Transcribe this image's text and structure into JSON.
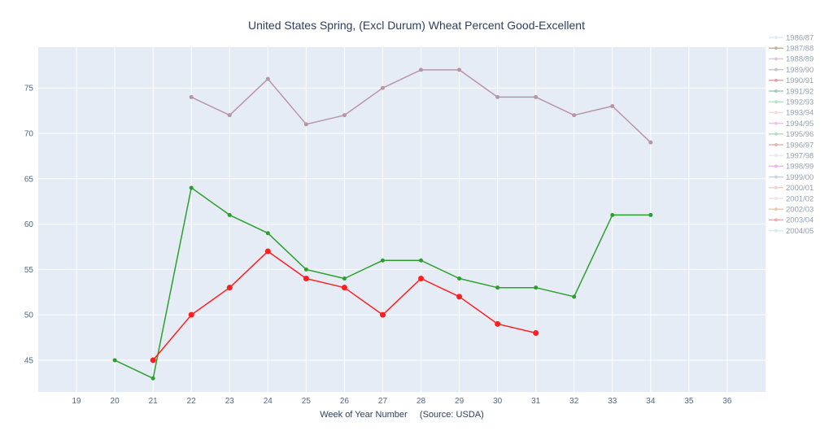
{
  "chart_data": {
    "type": "line",
    "title": "United States Spring, (Excl Durum) Wheat Percent Good-Excellent",
    "xlabel": "Week of Year Number     (Source: USDA)",
    "ylabel": "",
    "xlim": [
      18,
      37
    ],
    "ylim": [
      41.5,
      79.5
    ],
    "x_ticks": [
      19,
      20,
      21,
      22,
      23,
      24,
      25,
      26,
      27,
      28,
      29,
      30,
      31,
      32,
      33,
      34,
      35,
      36
    ],
    "y_ticks": [
      45,
      50,
      55,
      60,
      65,
      70,
      75
    ],
    "grid": true,
    "legend_position": "right",
    "legend": [
      {
        "name": "1986/87",
        "color": "#b6dfe8",
        "faded": true
      },
      {
        "name": "1987/88",
        "color": "#8b6b3e",
        "faded": true
      },
      {
        "name": "1988/89",
        "color": "#b895b6",
        "faded": true
      },
      {
        "name": "1989/90",
        "color": "#8f8f9f",
        "faded": true
      },
      {
        "name": "1990/91",
        "color": "#c74d4d",
        "faded": true
      },
      {
        "name": "1991/92",
        "color": "#4f9a6f",
        "faded": true
      },
      {
        "name": "1992/93",
        "color": "#77cc88",
        "faded": true
      },
      {
        "name": "1993/94",
        "color": "#f0b7b7",
        "faded": true
      },
      {
        "name": "1994/95",
        "color": "#d68de0",
        "faded": true
      },
      {
        "name": "1995/96",
        "color": "#6fbf8f",
        "faded": true
      },
      {
        "name": "1996/97",
        "color": "#d07070",
        "faded": true
      },
      {
        "name": "1997/98",
        "color": "#d8d8e0",
        "faded": true
      },
      {
        "name": "1998/99",
        "color": "#d670d6",
        "faded": true
      },
      {
        "name": "1999/00",
        "color": "#8fa8c8",
        "faded": true
      },
      {
        "name": "2000/01",
        "color": "#f4a09c",
        "faded": true
      },
      {
        "name": "2001/02",
        "color": "#f0c8c8",
        "faded": true
      },
      {
        "name": "2002/03",
        "color": "#c8a070",
        "faded": true
      },
      {
        "name": "2003/04",
        "color": "#e06060",
        "faded": true
      },
      {
        "name": "2004/05",
        "color": "#a6e0d6",
        "faded": true
      }
    ],
    "series": [
      {
        "color": "#b895a6",
        "marker": 2.5,
        "x": [
          22,
          23,
          24,
          25,
          26,
          27,
          28,
          29,
          30,
          31,
          32,
          33,
          34
        ],
        "y": [
          74,
          72,
          76,
          71,
          72,
          75,
          77,
          77,
          74,
          74,
          72,
          73,
          69
        ]
      },
      {
        "color": "#2ca02c",
        "marker": 2.5,
        "x": [
          20,
          21,
          22,
          23,
          24,
          25,
          26,
          27,
          28,
          29,
          30,
          31,
          32,
          33,
          34
        ],
        "y": [
          45,
          43,
          64,
          61,
          59,
          55,
          54,
          56,
          56,
          54,
          53,
          53,
          52,
          61,
          61
        ]
      },
      {
        "color": "#ff1f1f",
        "marker": 3.5,
        "x": [
          21,
          22,
          23,
          24,
          25,
          26,
          27,
          28,
          29,
          30,
          31
        ],
        "y": [
          45,
          50,
          53,
          57,
          54,
          53,
          50,
          54,
          52,
          49,
          48
        ]
      }
    ]
  }
}
